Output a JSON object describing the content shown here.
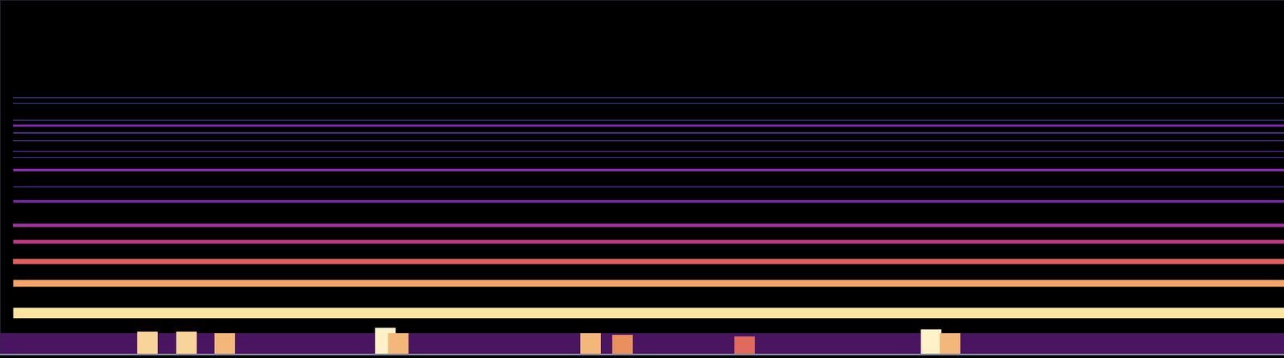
{
  "chart_data": {
    "type": "spectrogram",
    "xlim": [
      0,
      100
    ],
    "ylim": [
      0,
      100
    ],
    "xticks": [],
    "yticks": [],
    "tick_labels": false,
    "grid": false,
    "series": [
      {
        "type": "area",
        "color": "#4a1560",
        "x": [
          0,
          100
        ],
        "values": [
          6,
          6
        ]
      },
      {
        "type": "bar",
        "color": "#f3b77a",
        "x": [
          11.5,
          14.5,
          17.5,
          30.0,
          31.0,
          46.0,
          48.5,
          58.0,
          72.5,
          74.0
        ],
        "values": [
          6.5,
          6.5,
          6.0,
          7.5,
          6.0,
          6.0,
          5.5,
          5.0,
          7.0,
          6.0
        ],
        "colors": [
          "#f9d49a",
          "#f9d49a",
          "#f3b77a",
          "#fff2c8",
          "#f3b77a",
          "#f3b77a",
          "#e8905e",
          "#e06a5e",
          "#fff2c8",
          "#f3b77a"
        ]
      },
      {
        "type": "line",
        "color": "#fde5a0",
        "x": [
          1,
          100
        ],
        "values": [
          11.7,
          11.7
        ]
      },
      {
        "type": "line",
        "color": "#f5a46a",
        "x": [
          1,
          100
        ],
        "values": [
          20.1,
          20.1
        ]
      },
      {
        "type": "line",
        "color": "#e0605e",
        "x": [
          1,
          100
        ],
        "values": [
          26.2,
          26.2
        ]
      },
      {
        "type": "line",
        "color": "#c03a88",
        "x": [
          1,
          100
        ],
        "values": [
          31.8,
          31.8
        ]
      },
      {
        "type": "line",
        "color": "#a0309c",
        "x": [
          1,
          100
        ],
        "values": [
          36.4,
          36.4
        ]
      },
      {
        "type": "line",
        "color": "#7a2aa6",
        "x": [
          1,
          100
        ],
        "values": [
          43.2,
          43.2
        ]
      },
      {
        "type": "line",
        "color": "#3e2470",
        "x": [
          1,
          100
        ],
        "values": [
          47.4,
          47.4
        ]
      },
      {
        "type": "line",
        "color": "#8a2cb4",
        "x": [
          1,
          100
        ],
        "values": [
          52.1,
          52.1
        ]
      },
      {
        "type": "line",
        "color": "#3a2468",
        "x": [
          1,
          100
        ],
        "values": [
          55.6,
          55.6
        ]
      },
      {
        "type": "line",
        "color": "#4a2680",
        "x": [
          1,
          100
        ],
        "values": [
          57.2,
          57.2
        ]
      },
      {
        "type": "line",
        "color": "#4a2680",
        "x": [
          1,
          100
        ],
        "values": [
          60.3,
          60.3
        ]
      },
      {
        "type": "line",
        "color": "#5a2896",
        "x": [
          1,
          100
        ],
        "values": [
          62.6,
          62.6
        ]
      },
      {
        "type": "line",
        "color": "#7a2ab0",
        "x": [
          1,
          100
        ],
        "values": [
          64.5,
          64.5
        ]
      },
      {
        "type": "line",
        "color": "#3a2a78",
        "x": [
          1,
          100
        ],
        "values": [
          66.1,
          66.1
        ]
      },
      {
        "type": "line",
        "color": "#2e2e70",
        "x": [
          1,
          100
        ],
        "values": [
          70.8,
          70.8
        ]
      },
      {
        "type": "line",
        "color": "#34348a",
        "x": [
          1,
          100
        ],
        "values": [
          72.4,
          72.4
        ]
      }
    ]
  }
}
